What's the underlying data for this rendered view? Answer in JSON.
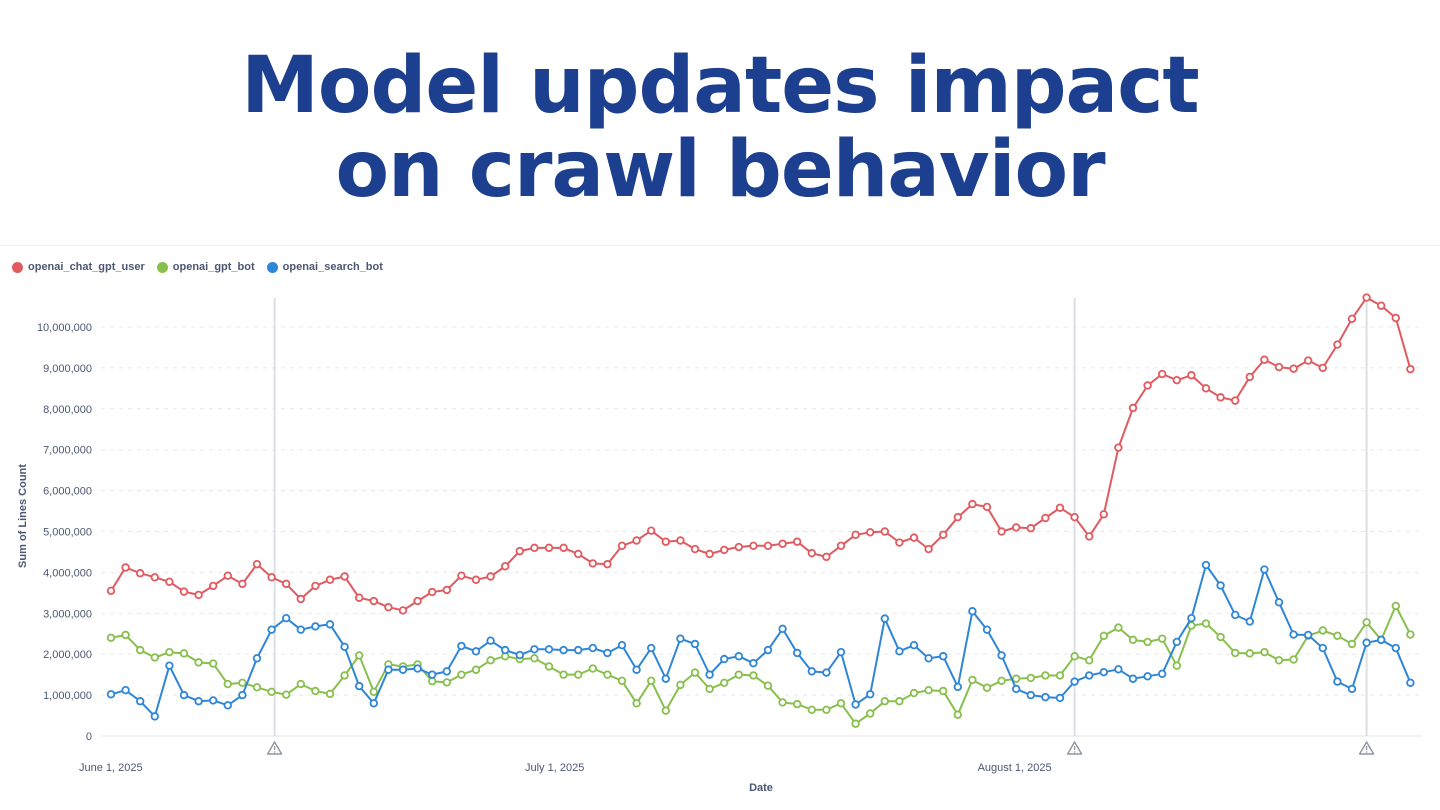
{
  "title_lines": [
    "Model updates impact",
    "on crawl behavior"
  ],
  "chart_data": {
    "type": "line",
    "title": "Model updates impact on crawl behavior",
    "xlabel": "Date",
    "ylabel": "Sum of Lines Count",
    "ylim": [
      0,
      10500000
    ],
    "yticks": [
      0,
      1000000,
      2000000,
      3000000,
      4000000,
      5000000,
      6000000,
      7000000,
      8000000,
      9000000,
      10000000
    ],
    "ytick_labels": [
      "0",
      "1,000,000",
      "2,000,000",
      "3,000,000",
      "4,000,000",
      "5,000,000",
      "6,000,000",
      "7,000,000",
      "8,000,000",
      "9,000,000",
      "10,000,000"
    ],
    "x_start": "2025-06-01",
    "x_count": 90,
    "xtick_labels": [
      {
        "index": 0,
        "label": "June 1, 2025"
      },
      {
        "index": 30,
        "label": "July 1, 2025"
      },
      {
        "index": 61,
        "label": "August 1, 2025"
      }
    ],
    "annotations": [
      {
        "index": 11,
        "type": "warning-marker"
      },
      {
        "index": 66,
        "type": "warning-marker"
      },
      {
        "index": 86,
        "type": "warning-marker"
      }
    ],
    "grid": true,
    "legend_position": "top-left",
    "series": [
      {
        "name": "openai_chat_gpt_user",
        "color": "#e05a5f",
        "values": [
          3550000,
          4120000,
          3980000,
          3880000,
          3770000,
          3530000,
          3450000,
          3670000,
          3920000,
          3720000,
          4200000,
          3880000,
          3720000,
          3350000,
          3670000,
          3820000,
          3900000,
          3380000,
          3300000,
          3150000,
          3070000,
          3300000,
          3520000,
          3570000,
          3920000,
          3820000,
          3900000,
          4150000,
          4520000,
          4600000,
          4600000,
          4600000,
          4450000,
          4220000,
          4200000,
          4650000,
          4780000,
          5020000,
          4750000,
          4780000,
          4570000,
          4450000,
          4550000,
          4620000,
          4650000,
          4650000,
          4700000,
          4750000,
          4470000,
          4380000,
          4650000,
          4920000,
          4980000,
          5000000,
          4730000,
          4850000,
          4570000,
          4920000,
          5350000,
          5670000,
          5600000,
          5000000,
          5100000,
          5080000,
          5330000,
          5580000,
          5350000,
          4880000,
          5420000,
          7050000,
          8020000,
          8570000,
          8850000,
          8700000,
          8820000,
          8500000,
          8280000,
          8200000,
          8780000,
          9200000,
          9020000,
          8980000,
          9180000,
          9000000,
          9570000,
          10200000,
          10720000,
          10520000,
          10220000,
          8970000
        ]
      },
      {
        "name": "openai_gpt_bot",
        "color": "#88bf4d",
        "values": [
          2400000,
          2470000,
          2100000,
          1920000,
          2050000,
          2020000,
          1800000,
          1770000,
          1270000,
          1300000,
          1190000,
          1080000,
          1010000,
          1270000,
          1100000,
          1030000,
          1480000,
          1970000,
          1080000,
          1750000,
          1700000,
          1750000,
          1340000,
          1310000,
          1500000,
          1620000,
          1850000,
          1950000,
          1880000,
          1900000,
          1700000,
          1500000,
          1500000,
          1650000,
          1500000,
          1350000,
          800000,
          1350000,
          620000,
          1250000,
          1550000,
          1150000,
          1300000,
          1500000,
          1480000,
          1230000,
          820000,
          780000,
          640000,
          640000,
          800000,
          300000,
          550000,
          850000,
          850000,
          1050000,
          1120000,
          1100000,
          520000,
          1370000,
          1180000,
          1350000,
          1400000,
          1420000,
          1480000,
          1480000,
          1950000,
          1850000,
          2450000,
          2650000,
          2350000,
          2300000,
          2380000,
          1720000,
          2700000,
          2750000,
          2420000,
          2030000,
          2020000,
          2050000,
          1850000,
          1870000,
          2450000,
          2580000,
          2450000,
          2250000,
          2780000,
          2350000,
          3180000,
          2480000
        ]
      },
      {
        "name": "openai_search_bot",
        "color": "#2f86d6",
        "values": [
          1020000,
          1120000,
          850000,
          480000,
          1720000,
          1000000,
          850000,
          870000,
          750000,
          1000000,
          1900000,
          2600000,
          2880000,
          2600000,
          2680000,
          2730000,
          2180000,
          1220000,
          800000,
          1620000,
          1620000,
          1650000,
          1500000,
          1580000,
          2200000,
          2070000,
          2330000,
          2100000,
          1980000,
          2120000,
          2120000,
          2100000,
          2100000,
          2150000,
          2030000,
          2220000,
          1620000,
          2150000,
          1400000,
          2380000,
          2250000,
          1500000,
          1880000,
          1950000,
          1780000,
          2100000,
          2620000,
          2030000,
          1580000,
          1550000,
          2050000,
          770000,
          1020000,
          2870000,
          2070000,
          2220000,
          1900000,
          1950000,
          1200000,
          3050000,
          2600000,
          1970000,
          1150000,
          1000000,
          950000,
          930000,
          1330000,
          1480000,
          1560000,
          1630000,
          1400000,
          1460000,
          1520000,
          2300000,
          2880000,
          4180000,
          3680000,
          2960000,
          2800000,
          4070000,
          3270000,
          2480000,
          2470000,
          2150000,
          1330000,
          1150000,
          2280000,
          2350000,
          2150000,
          1300000
        ]
      }
    ]
  }
}
